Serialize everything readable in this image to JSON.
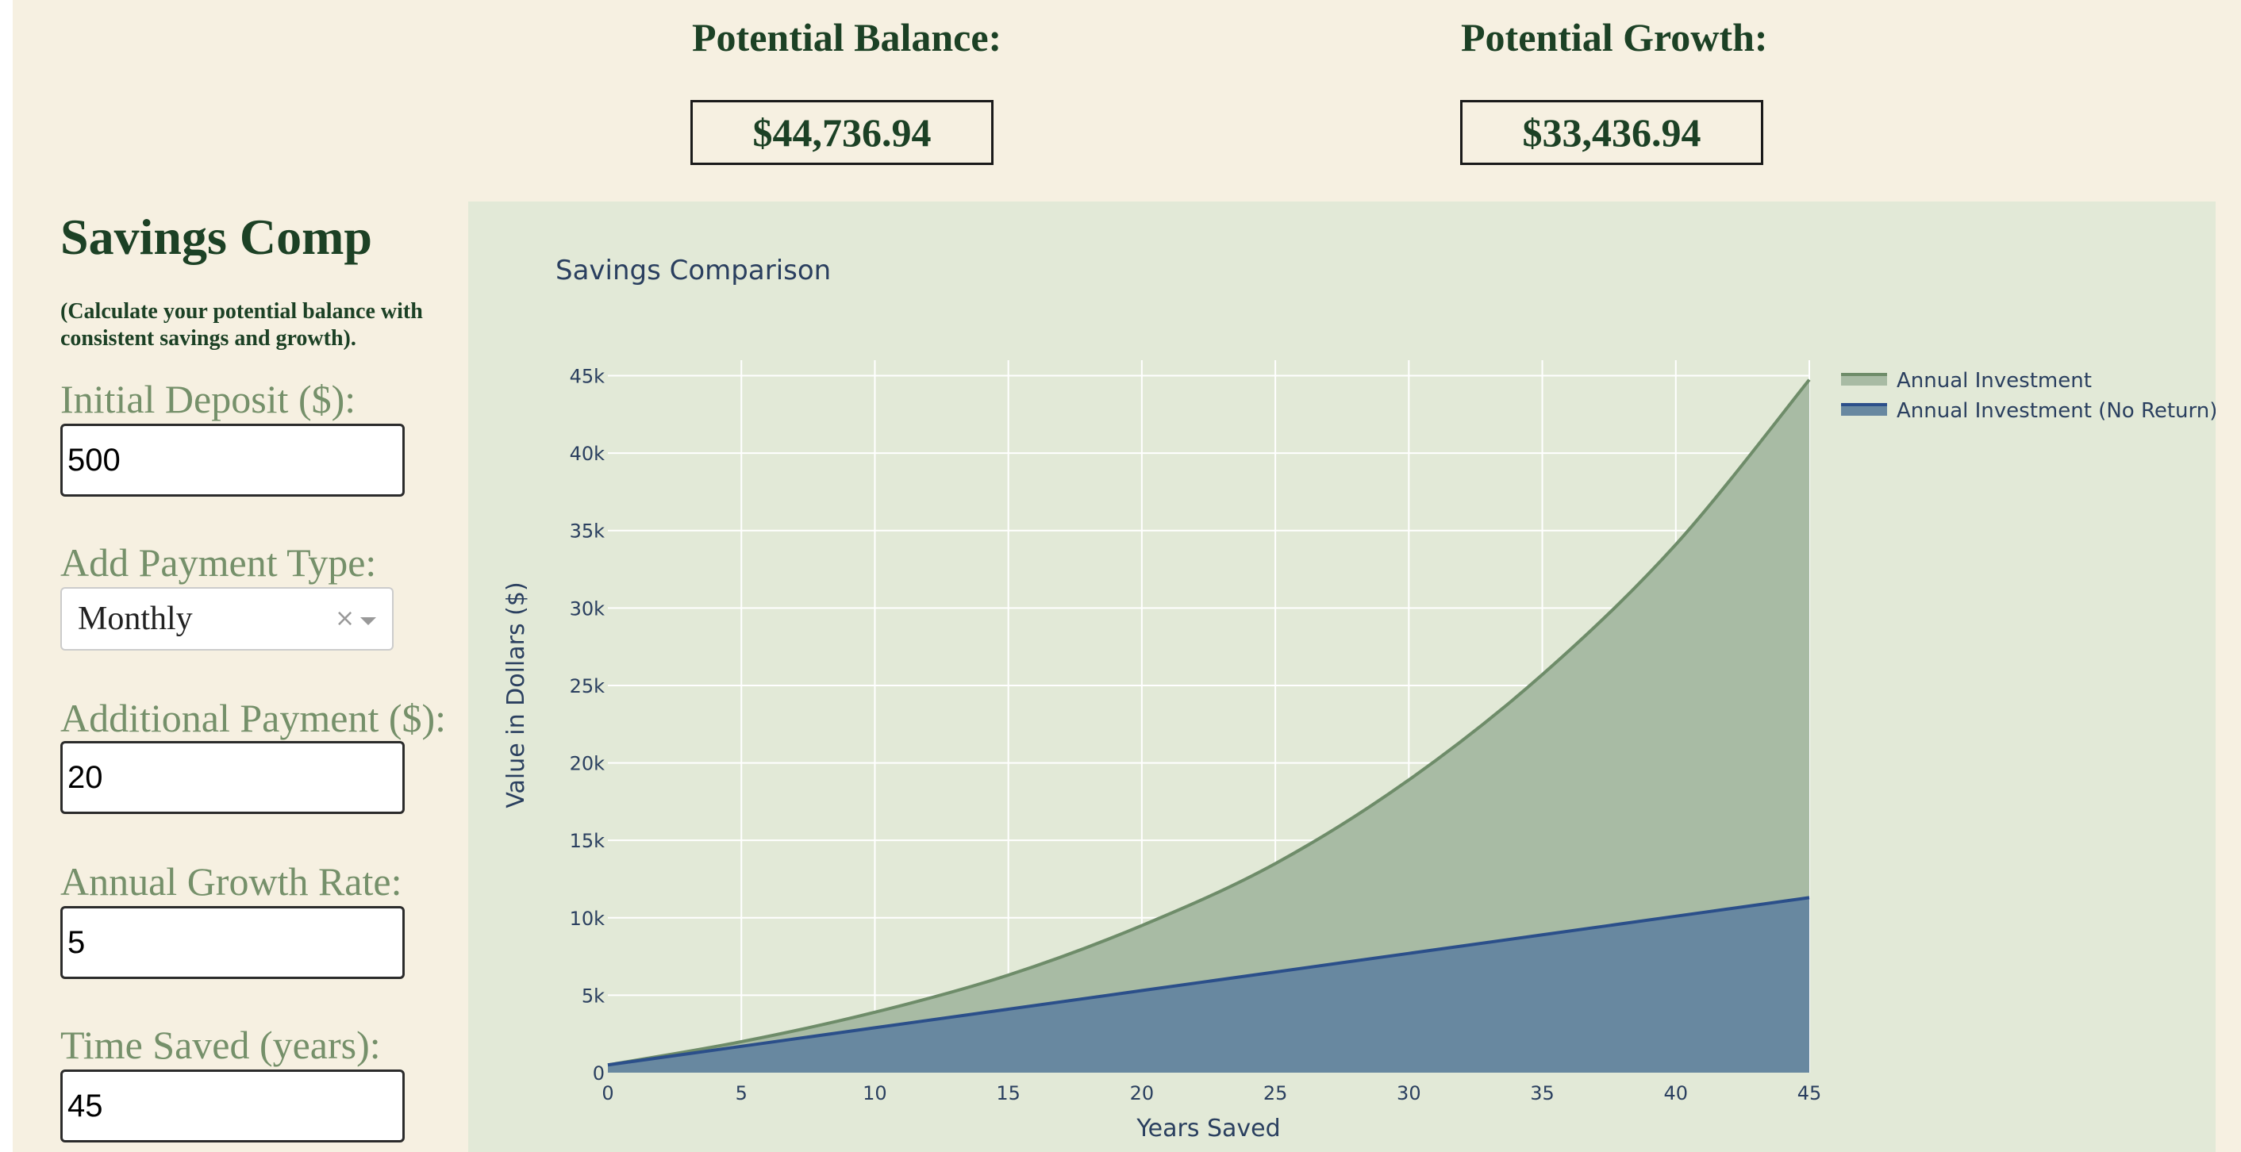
{
  "metrics": {
    "balance_label": "Potential Balance:",
    "balance_value": "$44,736.94",
    "growth_label": "Potential Growth:",
    "growth_value": "$33,436.94"
  },
  "sidebar": {
    "title": "Savings Comp",
    "subtitle": "(Calculate your potential balance with consistent savings and growth).",
    "initial_deposit_label": "Initial Deposit ($):",
    "initial_deposit_value": "500",
    "payment_type_label": "Add Payment Type:",
    "payment_type_value": "Monthly",
    "clear_glyph": "×",
    "additional_payment_label": "Additional Payment ($):",
    "additional_payment_value": "20",
    "growth_rate_label": "Annual Growth Rate:",
    "growth_rate_value": "5",
    "time_saved_label": "Time Saved (years):",
    "time_saved_value": "45"
  },
  "colors": {
    "page_bg": "#f6f0e1",
    "panel_bg": "#e2e9d7",
    "heading": "#1c4125",
    "label": "#75906a",
    "series_investment": "#6e8c69",
    "series_no_return": "#2b4f8a"
  },
  "chart_data": {
    "type": "area",
    "title": "Savings Comparison",
    "xlabel": "Years Saved",
    "ylabel": "Value in Dollars ($)",
    "xlim": [
      0,
      45
    ],
    "ylim": [
      0,
      46000
    ],
    "x_ticks": [
      0,
      5,
      10,
      15,
      20,
      25,
      30,
      35,
      40,
      45
    ],
    "y_ticks": [
      0,
      5000,
      10000,
      15000,
      20000,
      25000,
      30000,
      35000,
      40000,
      45000
    ],
    "y_tick_labels": [
      "0",
      "5k",
      "10k",
      "15k",
      "20k",
      "25k",
      "30k",
      "35k",
      "40k",
      "45k"
    ],
    "grid": true,
    "legend_position": "top-right",
    "x": [
      0,
      5,
      10,
      15,
      20,
      25,
      30,
      35,
      40,
      45
    ],
    "series": [
      {
        "name": "Annual Investment",
        "color": "#6e8c69",
        "values": [
          500,
          2000,
          3900,
          6300,
          9500,
          13500,
          18900,
          25700,
          34100,
          44736.94
        ]
      },
      {
        "name": "Annual Investment (No Return)",
        "color": "#2b4f8a",
        "values": [
          500,
          1700,
          2900,
          4100,
          5300,
          6500,
          7700,
          8900,
          10100,
          11300
        ]
      }
    ]
  }
}
